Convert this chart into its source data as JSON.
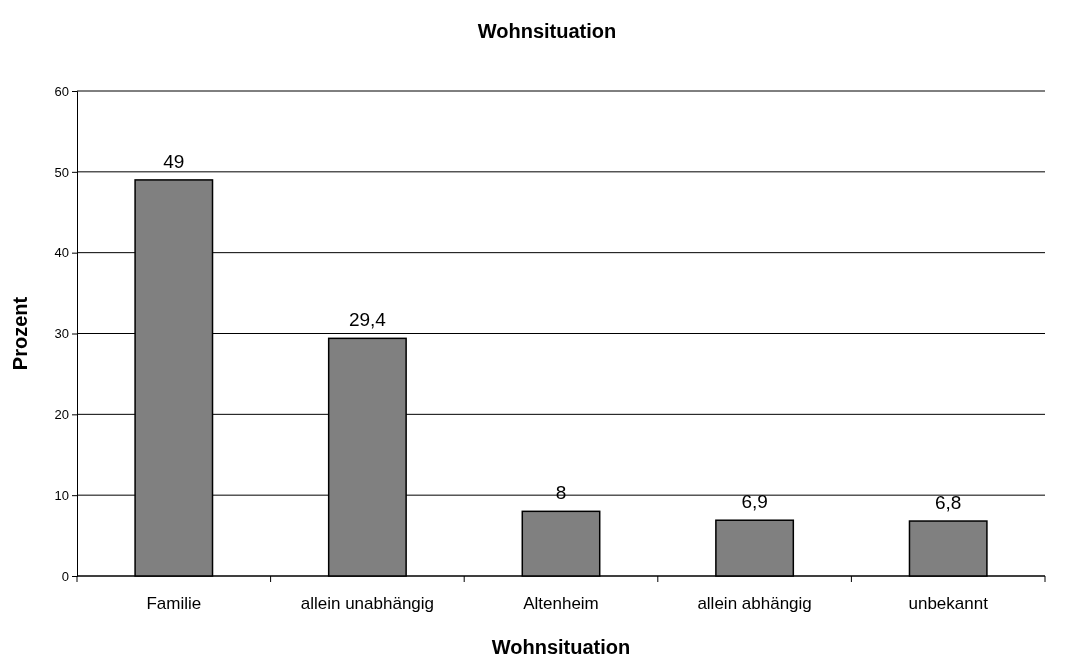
{
  "chart_data": {
    "type": "bar",
    "title": "Wohnsituation",
    "xlabel": "Wohnsituation",
    "ylabel": "Prozent",
    "categories": [
      "Familie",
      "allein unabhängig",
      "Altenheim",
      "allein abhängig",
      "unbekannt"
    ],
    "values": [
      49,
      29.4,
      8,
      6.9,
      6.8
    ],
    "value_labels": [
      "49",
      "29,4",
      "8",
      "6,9",
      "6,8"
    ],
    "color": "#808080",
    "ylim": [
      0,
      60
    ],
    "yticks": [
      0,
      10,
      20,
      30,
      40,
      50,
      60
    ],
    "grid": "y"
  }
}
